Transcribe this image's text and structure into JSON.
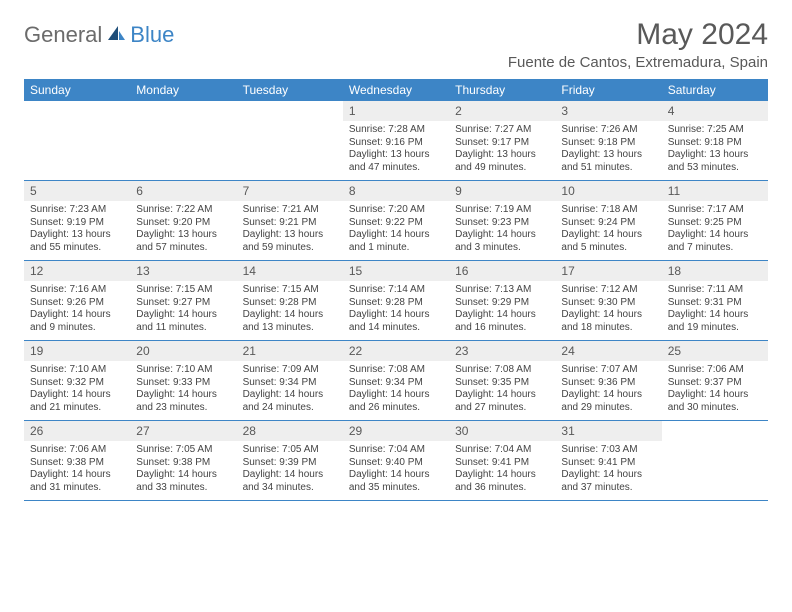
{
  "brand": {
    "part1": "General",
    "part2": "Blue"
  },
  "title": "May 2024",
  "location": "Fuente de Cantos, Extremadura, Spain",
  "colors": {
    "header_bg": "#3d85c6",
    "header_text": "#ffffff",
    "daynum_bg": "#eeeeee",
    "text": "#595959",
    "cell_border": "#3d85c6"
  },
  "dayNames": [
    "Sunday",
    "Monday",
    "Tuesday",
    "Wednesday",
    "Thursday",
    "Friday",
    "Saturday"
  ],
  "weeks": [
    [
      {
        "n": "",
        "sunrise": "",
        "sunset": "",
        "dl1": "",
        "dl2": "",
        "empty": true
      },
      {
        "n": "",
        "sunrise": "",
        "sunset": "",
        "dl1": "",
        "dl2": "",
        "empty": true
      },
      {
        "n": "",
        "sunrise": "",
        "sunset": "",
        "dl1": "",
        "dl2": "",
        "empty": true
      },
      {
        "n": "1",
        "sunrise": "Sunrise: 7:28 AM",
        "sunset": "Sunset: 9:16 PM",
        "dl1": "Daylight: 13 hours",
        "dl2": "and 47 minutes."
      },
      {
        "n": "2",
        "sunrise": "Sunrise: 7:27 AM",
        "sunset": "Sunset: 9:17 PM",
        "dl1": "Daylight: 13 hours",
        "dl2": "and 49 minutes."
      },
      {
        "n": "3",
        "sunrise": "Sunrise: 7:26 AM",
        "sunset": "Sunset: 9:18 PM",
        "dl1": "Daylight: 13 hours",
        "dl2": "and 51 minutes."
      },
      {
        "n": "4",
        "sunrise": "Sunrise: 7:25 AM",
        "sunset": "Sunset: 9:18 PM",
        "dl1": "Daylight: 13 hours",
        "dl2": "and 53 minutes."
      }
    ],
    [
      {
        "n": "5",
        "sunrise": "Sunrise: 7:23 AM",
        "sunset": "Sunset: 9:19 PM",
        "dl1": "Daylight: 13 hours",
        "dl2": "and 55 minutes."
      },
      {
        "n": "6",
        "sunrise": "Sunrise: 7:22 AM",
        "sunset": "Sunset: 9:20 PM",
        "dl1": "Daylight: 13 hours",
        "dl2": "and 57 minutes."
      },
      {
        "n": "7",
        "sunrise": "Sunrise: 7:21 AM",
        "sunset": "Sunset: 9:21 PM",
        "dl1": "Daylight: 13 hours",
        "dl2": "and 59 minutes."
      },
      {
        "n": "8",
        "sunrise": "Sunrise: 7:20 AM",
        "sunset": "Sunset: 9:22 PM",
        "dl1": "Daylight: 14 hours",
        "dl2": "and 1 minute."
      },
      {
        "n": "9",
        "sunrise": "Sunrise: 7:19 AM",
        "sunset": "Sunset: 9:23 PM",
        "dl1": "Daylight: 14 hours",
        "dl2": "and 3 minutes."
      },
      {
        "n": "10",
        "sunrise": "Sunrise: 7:18 AM",
        "sunset": "Sunset: 9:24 PM",
        "dl1": "Daylight: 14 hours",
        "dl2": "and 5 minutes."
      },
      {
        "n": "11",
        "sunrise": "Sunrise: 7:17 AM",
        "sunset": "Sunset: 9:25 PM",
        "dl1": "Daylight: 14 hours",
        "dl2": "and 7 minutes."
      }
    ],
    [
      {
        "n": "12",
        "sunrise": "Sunrise: 7:16 AM",
        "sunset": "Sunset: 9:26 PM",
        "dl1": "Daylight: 14 hours",
        "dl2": "and 9 minutes."
      },
      {
        "n": "13",
        "sunrise": "Sunrise: 7:15 AM",
        "sunset": "Sunset: 9:27 PM",
        "dl1": "Daylight: 14 hours",
        "dl2": "and 11 minutes."
      },
      {
        "n": "14",
        "sunrise": "Sunrise: 7:15 AM",
        "sunset": "Sunset: 9:28 PM",
        "dl1": "Daylight: 14 hours",
        "dl2": "and 13 minutes."
      },
      {
        "n": "15",
        "sunrise": "Sunrise: 7:14 AM",
        "sunset": "Sunset: 9:28 PM",
        "dl1": "Daylight: 14 hours",
        "dl2": "and 14 minutes."
      },
      {
        "n": "16",
        "sunrise": "Sunrise: 7:13 AM",
        "sunset": "Sunset: 9:29 PM",
        "dl1": "Daylight: 14 hours",
        "dl2": "and 16 minutes."
      },
      {
        "n": "17",
        "sunrise": "Sunrise: 7:12 AM",
        "sunset": "Sunset: 9:30 PM",
        "dl1": "Daylight: 14 hours",
        "dl2": "and 18 minutes."
      },
      {
        "n": "18",
        "sunrise": "Sunrise: 7:11 AM",
        "sunset": "Sunset: 9:31 PM",
        "dl1": "Daylight: 14 hours",
        "dl2": "and 19 minutes."
      }
    ],
    [
      {
        "n": "19",
        "sunrise": "Sunrise: 7:10 AM",
        "sunset": "Sunset: 9:32 PM",
        "dl1": "Daylight: 14 hours",
        "dl2": "and 21 minutes."
      },
      {
        "n": "20",
        "sunrise": "Sunrise: 7:10 AM",
        "sunset": "Sunset: 9:33 PM",
        "dl1": "Daylight: 14 hours",
        "dl2": "and 23 minutes."
      },
      {
        "n": "21",
        "sunrise": "Sunrise: 7:09 AM",
        "sunset": "Sunset: 9:34 PM",
        "dl1": "Daylight: 14 hours",
        "dl2": "and 24 minutes."
      },
      {
        "n": "22",
        "sunrise": "Sunrise: 7:08 AM",
        "sunset": "Sunset: 9:34 PM",
        "dl1": "Daylight: 14 hours",
        "dl2": "and 26 minutes."
      },
      {
        "n": "23",
        "sunrise": "Sunrise: 7:08 AM",
        "sunset": "Sunset: 9:35 PM",
        "dl1": "Daylight: 14 hours",
        "dl2": "and 27 minutes."
      },
      {
        "n": "24",
        "sunrise": "Sunrise: 7:07 AM",
        "sunset": "Sunset: 9:36 PM",
        "dl1": "Daylight: 14 hours",
        "dl2": "and 29 minutes."
      },
      {
        "n": "25",
        "sunrise": "Sunrise: 7:06 AM",
        "sunset": "Sunset: 9:37 PM",
        "dl1": "Daylight: 14 hours",
        "dl2": "and 30 minutes."
      }
    ],
    [
      {
        "n": "26",
        "sunrise": "Sunrise: 7:06 AM",
        "sunset": "Sunset: 9:38 PM",
        "dl1": "Daylight: 14 hours",
        "dl2": "and 31 minutes."
      },
      {
        "n": "27",
        "sunrise": "Sunrise: 7:05 AM",
        "sunset": "Sunset: 9:38 PM",
        "dl1": "Daylight: 14 hours",
        "dl2": "and 33 minutes."
      },
      {
        "n": "28",
        "sunrise": "Sunrise: 7:05 AM",
        "sunset": "Sunset: 9:39 PM",
        "dl1": "Daylight: 14 hours",
        "dl2": "and 34 minutes."
      },
      {
        "n": "29",
        "sunrise": "Sunrise: 7:04 AM",
        "sunset": "Sunset: 9:40 PM",
        "dl1": "Daylight: 14 hours",
        "dl2": "and 35 minutes."
      },
      {
        "n": "30",
        "sunrise": "Sunrise: 7:04 AM",
        "sunset": "Sunset: 9:41 PM",
        "dl1": "Daylight: 14 hours",
        "dl2": "and 36 minutes."
      },
      {
        "n": "31",
        "sunrise": "Sunrise: 7:03 AM",
        "sunset": "Sunset: 9:41 PM",
        "dl1": "Daylight: 14 hours",
        "dl2": "and 37 minutes."
      },
      {
        "n": "",
        "sunrise": "",
        "sunset": "",
        "dl1": "",
        "dl2": "",
        "empty": true
      }
    ]
  ]
}
